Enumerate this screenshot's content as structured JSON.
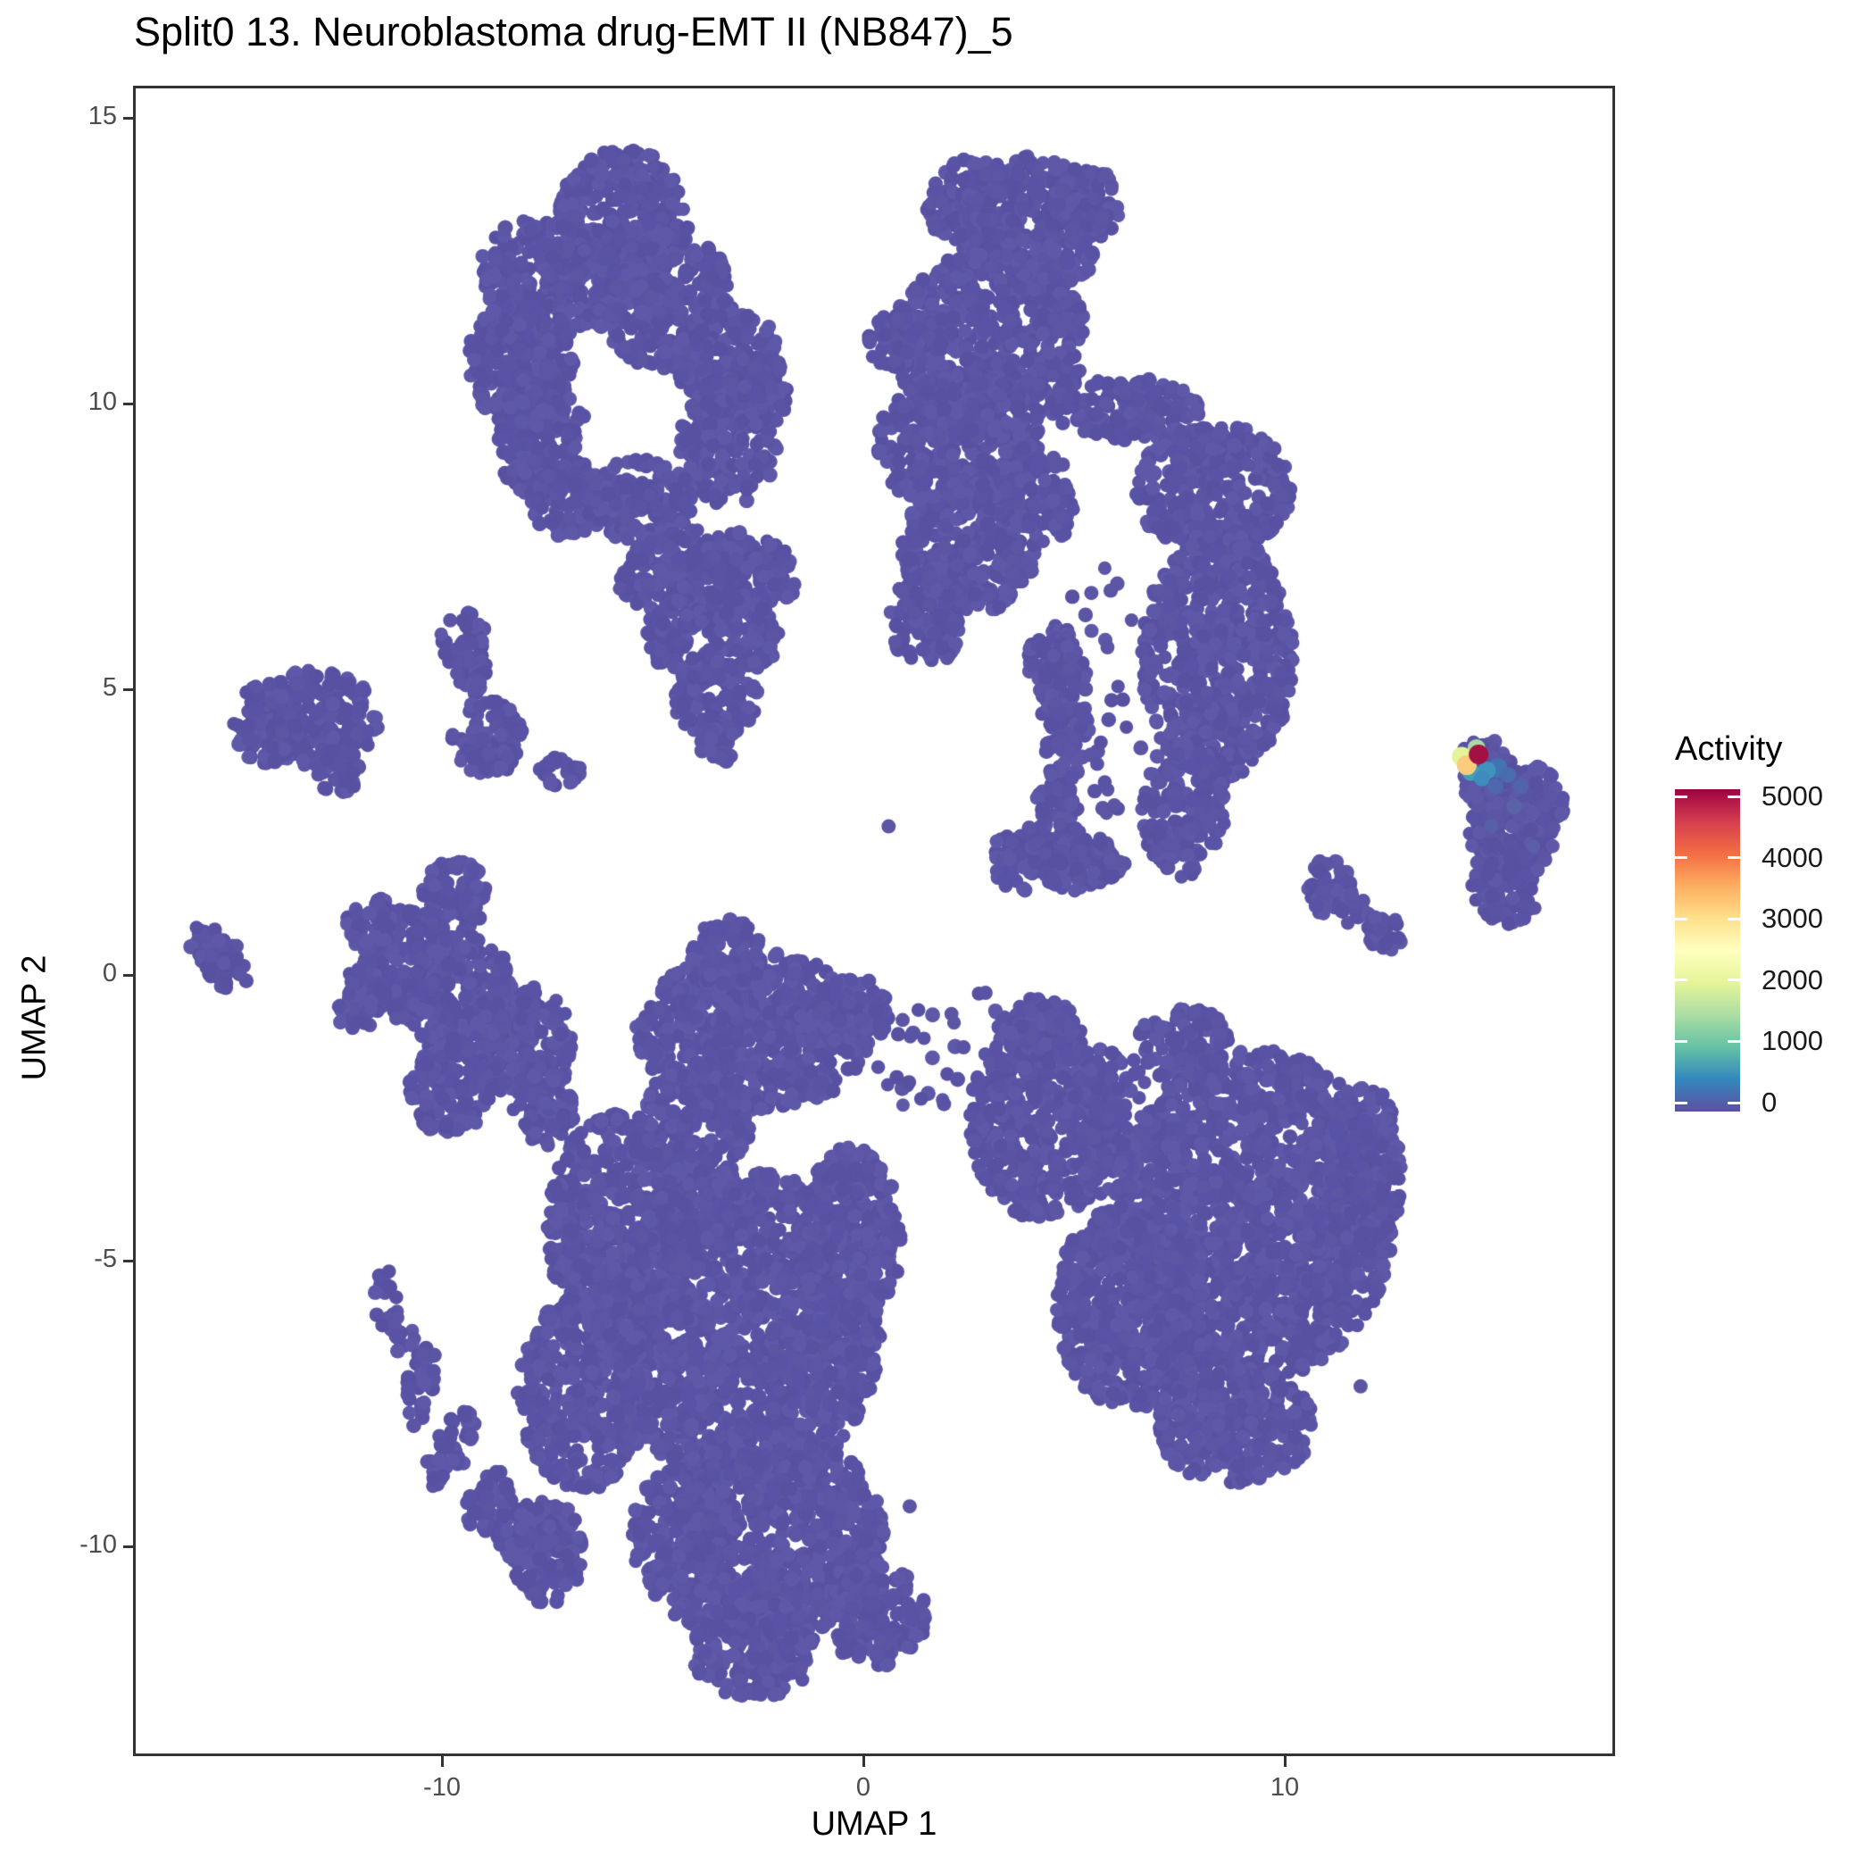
{
  "title": "Split0 13. Neuroblastoma drug-EMT II (NB847)_5",
  "chart_data": {
    "type": "scatter",
    "subtype": "umap-feature-plot",
    "title": "Split0 13. Neuroblastoma drug-EMT II (NB847)_5",
    "xlabel": "UMAP 1",
    "ylabel": "UMAP 2",
    "xlim": [
      -17.3,
      17.8
    ],
    "ylim": [
      -13.6,
      15.5
    ],
    "x_ticks": [
      -10,
      0,
      10
    ],
    "y_ticks": [
      15,
      10,
      5,
      0,
      -5,
      -10
    ],
    "grid": false,
    "point_color": "#5b55a4",
    "point_shades": [
      "#5b55a4",
      "#5851a1",
      "#5e58a8",
      "#5953a6"
    ],
    "point_radius_px": 8,
    "legend": {
      "title": "Activity",
      "position": "right",
      "min": 0,
      "max": 5000,
      "ticks": [
        0,
        1000,
        2000,
        3000,
        4000,
        5000
      ],
      "tick_labels": [
        "0",
        "1000",
        "2000",
        "3000",
        "4000",
        "5000"
      ],
      "gradient_bottom_to_top": [
        "#5e4fa2",
        "#3288bd",
        "#66c2a5",
        "#abdda4",
        "#e6f598",
        "#ffffbf",
        "#fee08b",
        "#fdae61",
        "#f46d43",
        "#d53e4f",
        "#9e0142"
      ]
    },
    "cluster_format": [
      "x",
      "y",
      "rx",
      "ry",
      "rot_deg",
      "density"
    ],
    "clusters": [
      [
        -5.7,
        13.4,
        1.5,
        1.05,
        0,
        1
      ],
      [
        -7.5,
        12.2,
        1.6,
        1.0,
        -10,
        1
      ],
      [
        -8.1,
        10.7,
        1.3,
        1.1,
        0,
        1
      ],
      [
        -7.6,
        9.3,
        1.1,
        1.0,
        0,
        1
      ],
      [
        -7.0,
        8.3,
        0.9,
        0.65,
        0,
        1
      ],
      [
        -4.8,
        11.9,
        1.6,
        1.3,
        0,
        1
      ],
      [
        -3.2,
        10.7,
        1.2,
        1.1,
        0,
        1
      ],
      [
        -3.2,
        9.3,
        1.15,
        1.1,
        0,
        1
      ],
      [
        -5.3,
        8.3,
        1.3,
        0.75,
        0,
        1
      ],
      [
        -2.3,
        10.2,
        0.55,
        0.65,
        0,
        0.7
      ],
      [
        -3.7,
        7.0,
        2.2,
        0.8,
        0,
        1
      ],
      [
        -3.6,
        5.9,
        1.6,
        0.8,
        0,
        1
      ],
      [
        -3.5,
        4.8,
        1.0,
        0.7,
        0,
        1
      ],
      [
        -3.5,
        4.05,
        0.45,
        0.4,
        0,
        1
      ],
      [
        -13.0,
        4.5,
        1.5,
        0.85,
        0,
        1
      ],
      [
        -14.2,
        4.4,
        0.75,
        0.7,
        0,
        1
      ],
      [
        -12.5,
        3.6,
        0.55,
        0.45,
        0,
        1
      ],
      [
        -9.5,
        5.85,
        0.55,
        0.5,
        0,
        1
      ],
      [
        -9.25,
        5.25,
        0.4,
        0.35,
        0,
        1
      ],
      [
        -8.9,
        4.15,
        0.85,
        0.68,
        0,
        1
      ],
      [
        -7.2,
        3.55,
        0.5,
        0.28,
        0,
        1
      ],
      [
        -15.3,
        0.3,
        0.8,
        0.45,
        -35,
        1
      ],
      [
        -9.7,
        1.4,
        0.75,
        0.65,
        0,
        1
      ],
      [
        -10.8,
        0.2,
        1.1,
        1.0,
        0,
        1
      ],
      [
        -9.5,
        -0.4,
        1.3,
        1.1,
        0,
        1
      ],
      [
        -8.0,
        -1.2,
        1.1,
        1.0,
        0,
        1
      ],
      [
        -9.8,
        -2.0,
        1.0,
        0.8,
        0,
        1
      ],
      [
        -7.6,
        -2.3,
        0.75,
        0.7,
        0,
        1
      ],
      [
        -11.7,
        0.9,
        0.55,
        0.5,
        0,
        1
      ],
      [
        -11.9,
        -0.4,
        0.5,
        0.7,
        -30,
        1
      ],
      [
        2.5,
        13.5,
        1.0,
        0.8,
        0,
        1
      ],
      [
        4.0,
        13.1,
        1.7,
        1.25,
        0,
        1
      ],
      [
        5.3,
        13.5,
        0.8,
        0.65,
        0,
        1
      ],
      [
        3.0,
        11.1,
        2.3,
        1.6,
        0,
        1
      ],
      [
        0.7,
        11.1,
        0.6,
        0.55,
        0,
        1
      ],
      [
        2.3,
        9.3,
        2.0,
        1.2,
        0,
        1
      ],
      [
        2.5,
        7.5,
        1.6,
        1.2,
        0,
        1
      ],
      [
        1.5,
        6.2,
        0.9,
        0.8,
        0,
        1
      ],
      [
        4.3,
        8.3,
        0.7,
        0.8,
        0,
        0.9
      ],
      [
        6.2,
        9.9,
        1.8,
        0.55,
        0,
        1
      ],
      [
        8.3,
        8.5,
        1.85,
        1.15,
        0,
        1
      ],
      [
        8.4,
        5.6,
        1.8,
        2.2,
        0,
        1
      ],
      [
        7.6,
        2.9,
        1.0,
        1.2,
        0,
        1
      ],
      [
        4.5,
        5.5,
        0.6,
        0.7,
        0,
        1
      ],
      [
        4.8,
        4.6,
        0.6,
        1.2,
        0,
        1
      ],
      [
        4.6,
        2.8,
        0.55,
        1.0,
        0,
        1
      ],
      [
        3.9,
        2.0,
        0.9,
        0.6,
        0,
        1
      ],
      [
        5.2,
        1.95,
        1.0,
        0.5,
        0,
        1
      ],
      [
        5.9,
        4.0,
        0.7,
        1.3,
        0,
        0.12
      ],
      [
        5.7,
        6.3,
        0.8,
        0.9,
        0,
        0.1
      ],
      [
        11.0,
        1.55,
        0.55,
        0.5,
        0,
        1
      ],
      [
        11.7,
        1.1,
        0.5,
        0.32,
        -30,
        1
      ],
      [
        12.35,
        0.7,
        0.42,
        0.38,
        0,
        1
      ],
      [
        15.0,
        3.3,
        0.75,
        0.8,
        0,
        1
      ],
      [
        15.4,
        2.6,
        1.05,
        1.0,
        0,
        1
      ],
      [
        15.3,
        1.6,
        0.85,
        0.75,
        0,
        1
      ],
      [
        16.1,
        2.9,
        0.55,
        0.75,
        0,
        1
      ],
      [
        14.6,
        3.6,
        0.5,
        0.5,
        0,
        1
      ],
      [
        -3.2,
        0.2,
        0.9,
        0.8,
        0,
        1
      ],
      [
        -2.6,
        -1.0,
        2.8,
        1.4,
        0,
        1
      ],
      [
        -0.3,
        -0.7,
        0.9,
        0.7,
        0,
        1
      ],
      [
        -4.0,
        -2.6,
        1.3,
        1.1,
        0,
        1
      ],
      [
        -5.8,
        -4.4,
        1.7,
        2.0,
        0,
        1
      ],
      [
        -2.8,
        -6.2,
        3.2,
        2.8,
        0,
        1
      ],
      [
        -6.6,
        -7.3,
        1.6,
        1.7,
        0,
        1
      ],
      [
        -0.3,
        -4.6,
        1.2,
        1.6,
        0,
        1
      ],
      [
        -2.5,
        -9.8,
        3.0,
        1.9,
        0,
        1
      ],
      [
        -7.5,
        -10.1,
        0.85,
        0.9,
        0,
        1
      ],
      [
        -2.6,
        -11.8,
        1.5,
        0.9,
        0,
        1
      ],
      [
        0.3,
        -11.2,
        1.2,
        0.9,
        0,
        1
      ],
      [
        -6.2,
        -5.3,
        0.6,
        0.5,
        0,
        0.3
      ],
      [
        -11.3,
        -5.7,
        0.3,
        0.55,
        0,
        0.6
      ],
      [
        -10.9,
        -6.35,
        0.3,
        0.4,
        0,
        0.6
      ],
      [
        -10.5,
        -7.2,
        0.35,
        0.75,
        -20,
        0.8
      ],
      [
        -9.8,
        -8.3,
        0.4,
        0.8,
        -40,
        0.8
      ],
      [
        -8.9,
        -9.2,
        0.5,
        0.6,
        -50,
        0.9
      ],
      [
        -8.0,
        -9.7,
        0.7,
        0.6,
        0,
        1
      ],
      [
        1.4,
        -1.5,
        1.2,
        0.9,
        0,
        0.12
      ],
      [
        2.9,
        -0.9,
        0.9,
        0.7,
        0,
        0.15
      ],
      [
        4.3,
        -2.5,
        1.8,
        1.8,
        0,
        1
      ],
      [
        4.2,
        -0.9,
        0.9,
        0.55,
        0,
        1
      ],
      [
        7.6,
        -1.2,
        1.1,
        0.65,
        0,
        1
      ],
      [
        9.3,
        -4.2,
        3.3,
        2.9,
        0,
        1
      ],
      [
        6.4,
        -5.8,
        1.9,
        1.8,
        0,
        1
      ],
      [
        11.9,
        -3.4,
        0.9,
        1.5,
        0,
        1
      ],
      [
        8.8,
        -7.9,
        1.9,
        1.0,
        0,
        1
      ],
      [
        5.9,
        -2.6,
        1.0,
        1.3,
        0,
        0.5
      ]
    ],
    "holes": [
      [
        -5.6,
        9.8,
        0.8,
        0.65
      ]
    ],
    "singles": [
      [
        -2.2,
        10.3
      ],
      [
        -9.2,
        5.0
      ],
      [
        -7.0,
        -5.9
      ],
      [
        1.1,
        -9.3
      ],
      [
        11.8,
        -7.2
      ],
      [
        0.6,
        2.6
      ]
    ],
    "highlight_format": [
      "x",
      "y",
      "radius_px",
      "color",
      "activity_approx"
    ],
    "highlights": [
      [
        15.05,
        3.62,
        11,
        "#4273b3",
        500
      ],
      [
        15.3,
        3.5,
        9,
        "#4b6bb0",
        400
      ],
      [
        14.8,
        3.58,
        10,
        "#3f93be",
        900
      ],
      [
        14.42,
        3.55,
        10,
        "#3fa3b4",
        1050
      ],
      [
        14.68,
        3.44,
        9,
        "#3e8cbd",
        800
      ],
      [
        15.0,
        3.3,
        9,
        "#4d68ae",
        400
      ],
      [
        15.45,
        2.95,
        9,
        "#5a62a8",
        250
      ],
      [
        15.9,
        2.25,
        8,
        "#5c5ea6",
        150
      ],
      [
        14.9,
        2.6,
        8,
        "#575fa7",
        180
      ],
      [
        15.6,
        3.3,
        9,
        "#5163ab",
        350
      ],
      [
        14.55,
        3.97,
        10,
        "#a9daa2",
        1600
      ],
      [
        14.2,
        3.82,
        11,
        "#e3f49b",
        2100
      ],
      [
        14.32,
        3.67,
        11,
        "#fbcc7e",
        3100
      ],
      [
        14.6,
        3.86,
        11,
        "#a31144",
        4900
      ]
    ]
  }
}
